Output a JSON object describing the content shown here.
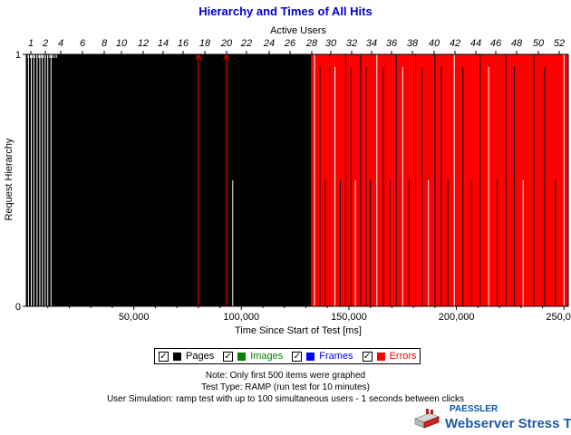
{
  "chart_data": {
    "type": "bar",
    "title": "Hierarchy and Times of All Hits",
    "xlabel": "Time Since Start of Test [ms]",
    "ylabel": "Request Hierarchy",
    "top_axis_label": "Active Users",
    "xlim": [
      0,
      252000
    ],
    "ylim": [
      0,
      1
    ],
    "x_ticks": [
      "50,000",
      "100,000",
      "150,000",
      "200,000",
      "250,000"
    ],
    "y_ticks": [
      "0",
      "1"
    ],
    "top_ticks": [
      "1",
      "2",
      "4",
      "6",
      "8",
      "10",
      "12",
      "14",
      "16",
      "18",
      "20",
      "22",
      "24",
      "26",
      "28",
      "30",
      "32",
      "34",
      "36",
      "38",
      "40",
      "42",
      "44",
      "46",
      "48",
      "50",
      "52"
    ],
    "series": [
      {
        "name": "Pages",
        "color": "#000000",
        "ranges": [
          [
            0,
            132500
          ]
        ]
      },
      {
        "name": "Images",
        "color": "#008000",
        "ranges": []
      },
      {
        "name": "Frames",
        "color": "#0000ff",
        "ranges": []
      },
      {
        "name": "Errors",
        "color": "#ff0000",
        "ranges": [
          [
            132500,
            252000
          ]
        ]
      }
    ],
    "pages_marker_times": [
      80000,
      93000
    ],
    "pages_gap_lines": [
      1000,
      2300,
      3500,
      5000,
      6300,
      7500,
      8800,
      10000,
      11500,
      96000
    ],
    "errors_gap_lines": [
      134000,
      136500,
      139000,
      141000,
      143500,
      146000,
      148500,
      151000,
      153000,
      155500,
      158000,
      160000,
      163000,
      166000,
      169000,
      172000,
      175000,
      178000,
      181000,
      184000,
      187000,
      190000,
      193000,
      196000,
      199000,
      203000,
      207000,
      211000,
      215000,
      219000,
      223000,
      227000,
      231000,
      236000,
      241000,
      246000,
      250000
    ]
  },
  "legend": {
    "items": [
      {
        "label": "Pages",
        "color": "#000000",
        "text_color": "#000000",
        "checked": "✓"
      },
      {
        "label": "Images",
        "color": "#008000",
        "text_color": "#008000",
        "checked": "✓"
      },
      {
        "label": "Frames",
        "color": "#0000ff",
        "text_color": "#0000ff",
        "checked": "✓"
      },
      {
        "label": "Errors",
        "color": "#ff0000",
        "text_color": "#ff0000",
        "checked": "✓"
      }
    ]
  },
  "notes": {
    "line1": "Note: Only first 500 items were graphed",
    "line2": "Test Type: RAMP (run test for 10 minutes)",
    "line3": "User Simulation: ramp test with up to 100 simultaneous users - 1 seconds between clicks"
  },
  "branding": {
    "company": "PAESSLER",
    "product": "Webserver Stress Tool"
  },
  "colors": {
    "title": "#0000cc",
    "pages": "#000000",
    "errors": "#ff0000"
  }
}
